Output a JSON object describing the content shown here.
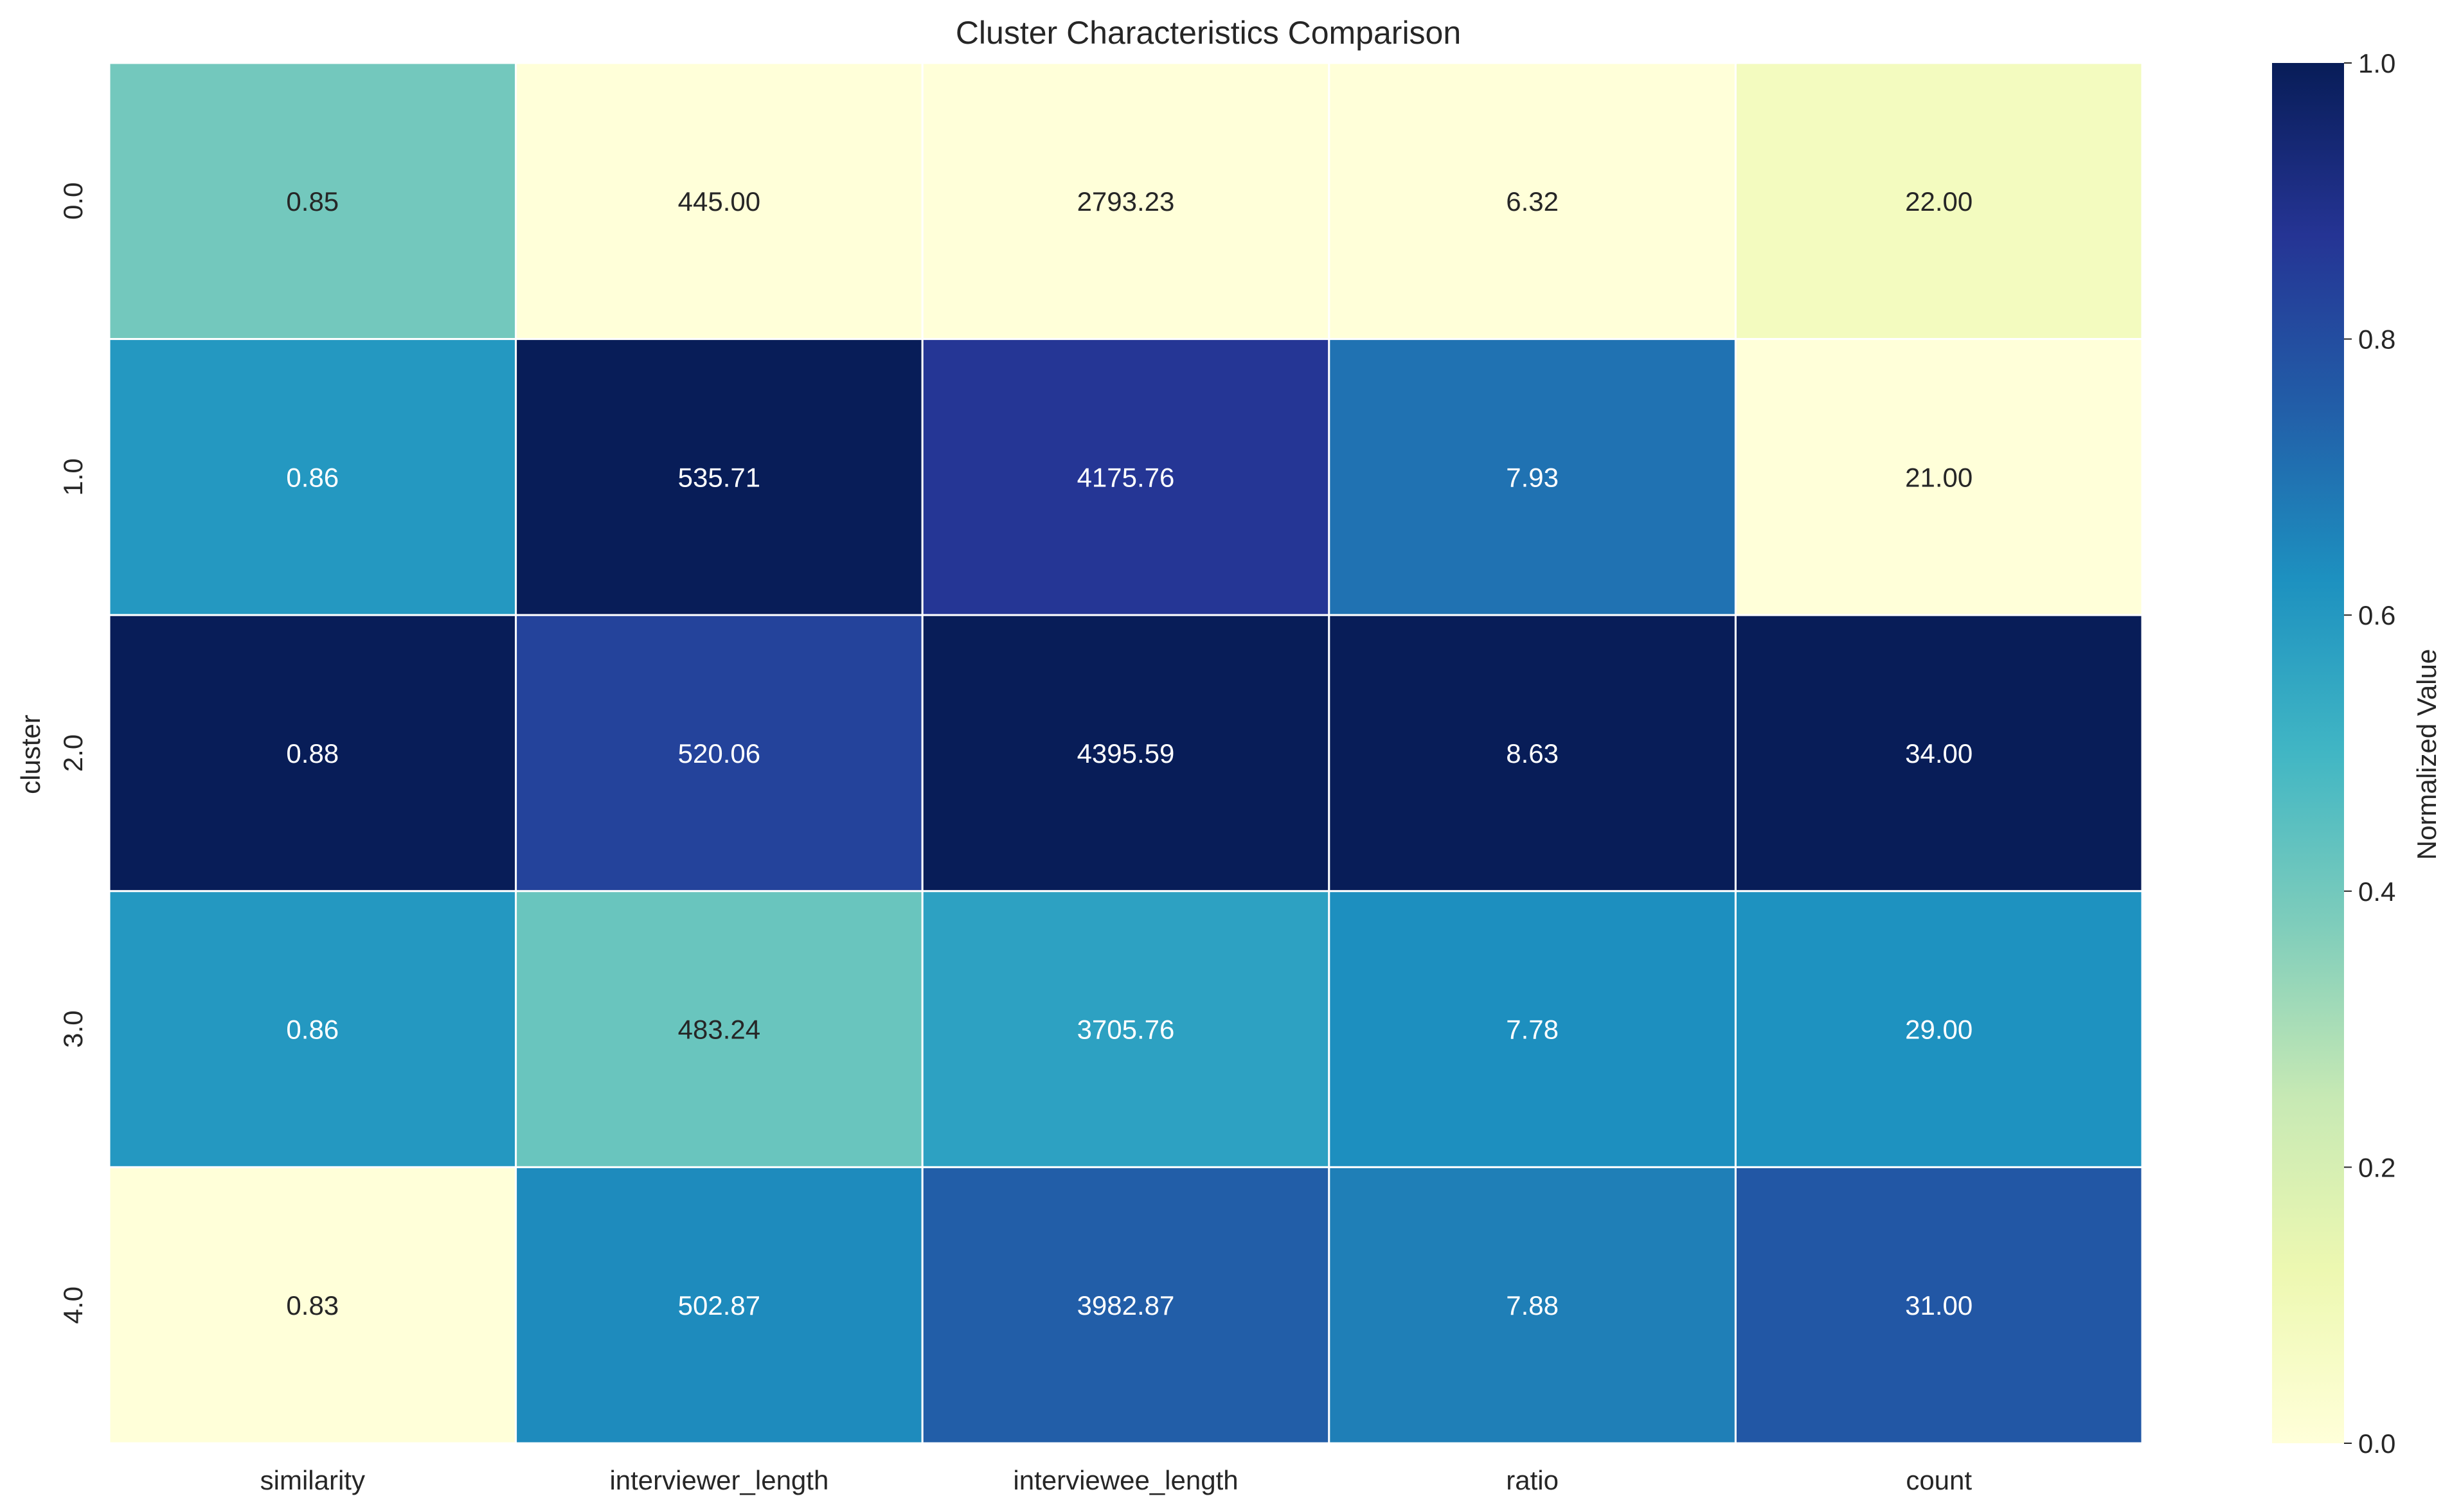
{
  "chart_data": {
    "type": "heatmap",
    "title": "Cluster Characteristics Comparison",
    "xlabel": "",
    "ylabel": "cluster",
    "x_categories": [
      "similarity",
      "interviewer_length",
      "interviewee_length",
      "ratio",
      "count"
    ],
    "y_categories": [
      "0.0",
      "1.0",
      "2.0",
      "3.0",
      "4.0"
    ],
    "values": [
      [
        0.85,
        445.0,
        2793.23,
        6.32,
        22.0
      ],
      [
        0.86,
        535.71,
        4175.76,
        7.93,
        21.0
      ],
      [
        0.88,
        520.06,
        4395.59,
        8.63,
        34.0
      ],
      [
        0.86,
        483.24,
        3705.76,
        7.78,
        29.0
      ],
      [
        0.83,
        502.87,
        3982.87,
        7.88,
        31.0
      ]
    ],
    "value_labels": [
      [
        "0.85",
        "445.00",
        "2793.23",
        "6.32",
        "22.00"
      ],
      [
        "0.86",
        "535.71",
        "4175.76",
        "7.93",
        "21.00"
      ],
      [
        "0.88",
        "520.06",
        "4395.59",
        "8.63",
        "34.00"
      ],
      [
        "0.86",
        "483.24",
        "3705.76",
        "7.78",
        "29.00"
      ],
      [
        "0.83",
        "502.87",
        "3982.87",
        "7.88",
        "31.00"
      ]
    ],
    "normalized": [
      [
        0.4,
        0.0,
        0.0,
        0.0,
        0.08
      ],
      [
        0.6,
        1.0,
        0.87,
        0.7,
        0.0
      ],
      [
        1.0,
        0.83,
        1.0,
        1.0,
        1.0
      ],
      [
        0.6,
        0.42,
        0.57,
        0.63,
        0.62
      ],
      [
        0.0,
        0.64,
        0.75,
        0.67,
        0.77
      ]
    ],
    "colorbar": {
      "label": "Normalized Value",
      "range": [
        0.0,
        1.0
      ],
      "ticks": [
        "0.0",
        "0.2",
        "0.4",
        "0.6",
        "0.8",
        "1.0"
      ],
      "colormap": "YlGnBu"
    },
    "colors": {
      "cell_border": "#ffffff",
      "text_light": "#ffffff",
      "text_dark": "#262626"
    }
  }
}
